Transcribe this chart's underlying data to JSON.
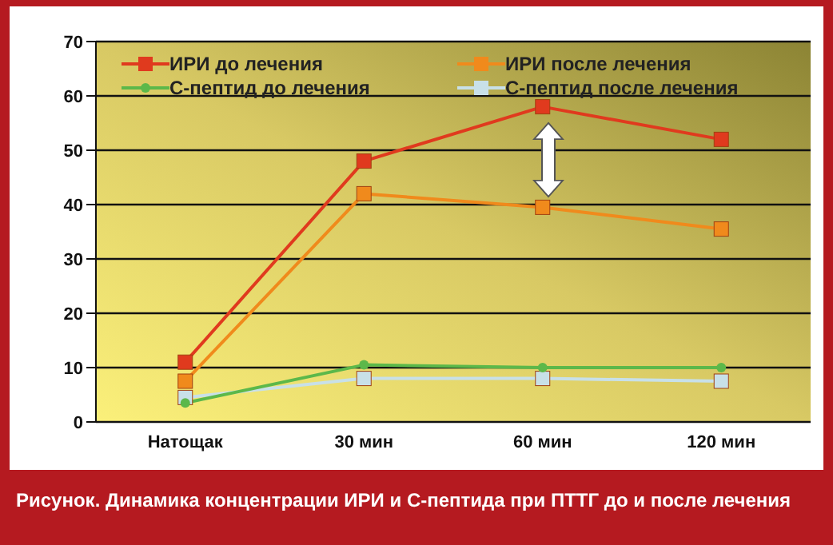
{
  "chart_data": {
    "type": "line",
    "title": "Рисунок. Динамика концентрации ИРИ и С-пептида при ПТТГ до и после лечения",
    "categories": [
      "Натощак",
      "30 мин",
      "60 мин",
      "120 мин"
    ],
    "series": [
      {
        "name": "ИРИ до лечения",
        "color": "#e03a1e",
        "values": [
          11,
          48,
          58,
          52
        ],
        "marker": "square"
      },
      {
        "name": "ИРИ после лечения",
        "color": "#f08a1c",
        "values": [
          7.5,
          42,
          39.5,
          35.5
        ],
        "marker": "square"
      },
      {
        "name": "С-пептид до лечения",
        "color": "#5cb84a",
        "values": [
          3.5,
          10.5,
          10,
          10
        ],
        "marker": "circle"
      },
      {
        "name": "С-пептид после лечения",
        "color": "#c8e0e8",
        "values": [
          4.5,
          8,
          8,
          7.5
        ],
        "marker": "square"
      }
    ],
    "ylim": [
      0,
      70
    ],
    "yticks": [
      0,
      10,
      20,
      30,
      40,
      50,
      60,
      70
    ],
    "grid": "y",
    "legend": "top"
  }
}
